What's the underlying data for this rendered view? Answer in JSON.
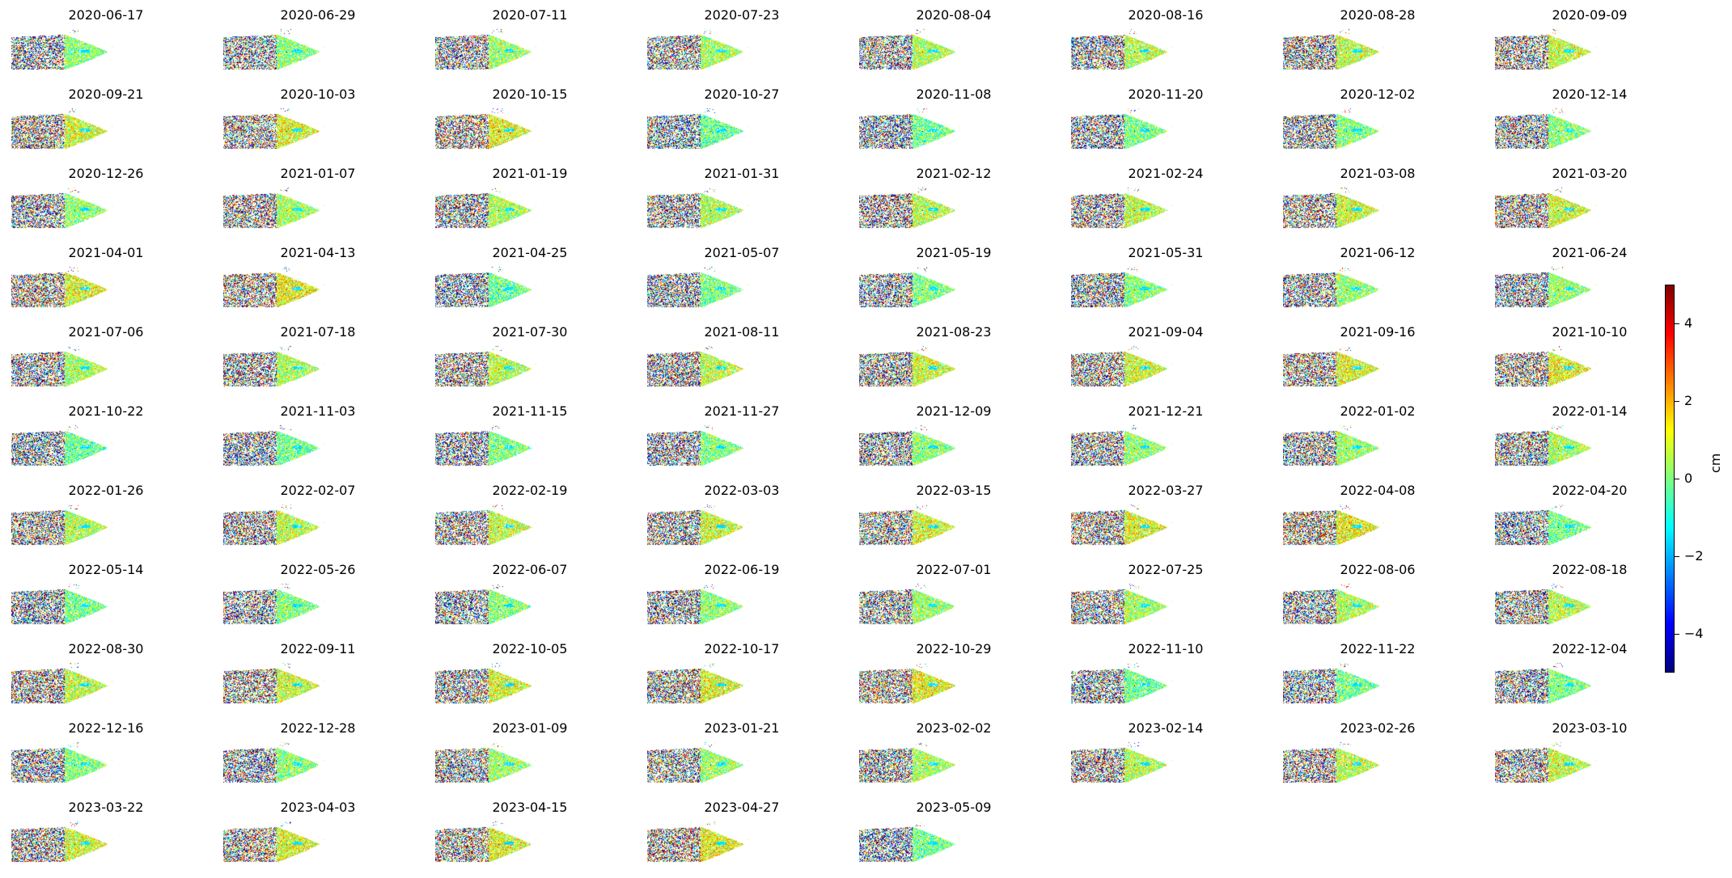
{
  "chart_data": {
    "type": "heatmap",
    "layout": "small-multiples",
    "columns": 8,
    "panels": [
      "2020-06-17",
      "2020-06-29",
      "2020-07-11",
      "2020-07-23",
      "2020-08-04",
      "2020-08-16",
      "2020-08-28",
      "2020-09-09",
      "2020-09-21",
      "2020-10-03",
      "2020-10-15",
      "2020-10-27",
      "2020-11-08",
      "2020-11-20",
      "2020-12-02",
      "2020-12-14",
      "2020-12-26",
      "2021-01-07",
      "2021-01-19",
      "2021-01-31",
      "2021-02-12",
      "2021-02-24",
      "2021-03-08",
      "2021-03-20",
      "2021-04-01",
      "2021-04-13",
      "2021-04-25",
      "2021-05-07",
      "2021-05-19",
      "2021-05-31",
      "2021-06-12",
      "2021-06-24",
      "2021-07-06",
      "2021-07-18",
      "2021-07-30",
      "2021-08-11",
      "2021-08-23",
      "2021-09-04",
      "2021-09-16",
      "2021-10-10",
      "2021-10-22",
      "2021-11-03",
      "2021-11-15",
      "2021-11-27",
      "2021-12-09",
      "2021-12-21",
      "2022-01-02",
      "2022-01-14",
      "2022-01-26",
      "2022-02-07",
      "2022-02-19",
      "2022-03-03",
      "2022-03-15",
      "2022-03-27",
      "2022-04-08",
      "2022-04-20",
      "2022-05-14",
      "2022-05-26",
      "2022-06-07",
      "2022-06-19",
      "2022-07-01",
      "2022-07-25",
      "2022-08-06",
      "2022-08-18",
      "2022-08-30",
      "2022-09-11",
      "2022-10-05",
      "2022-10-17",
      "2022-10-29",
      "2022-11-10",
      "2022-11-22",
      "2022-12-04",
      "2022-12-16",
      "2022-12-28",
      "2023-01-09",
      "2023-01-21",
      "2023-02-02",
      "2023-02-14",
      "2023-02-26",
      "2023-03-10",
      "2023-03-22",
      "2023-04-03",
      "2023-04-15",
      "2023-04-27",
      "2023-05-09"
    ],
    "colorbar": {
      "label": "cm",
      "range": [
        -5,
        5
      ],
      "ticks": [
        4,
        2,
        0,
        -2,
        -4
      ],
      "tick_labels": [
        "4",
        "2",
        "0",
        "−2",
        "−4"
      ],
      "colormap": "jet",
      "colors": [
        "#00007f",
        "#0000ff",
        "#007fff",
        "#00ffff",
        "#7fff7f",
        "#ffff00",
        "#ff7f00",
        "#ff0000",
        "#7f0000"
      ]
    },
    "grid": false
  }
}
